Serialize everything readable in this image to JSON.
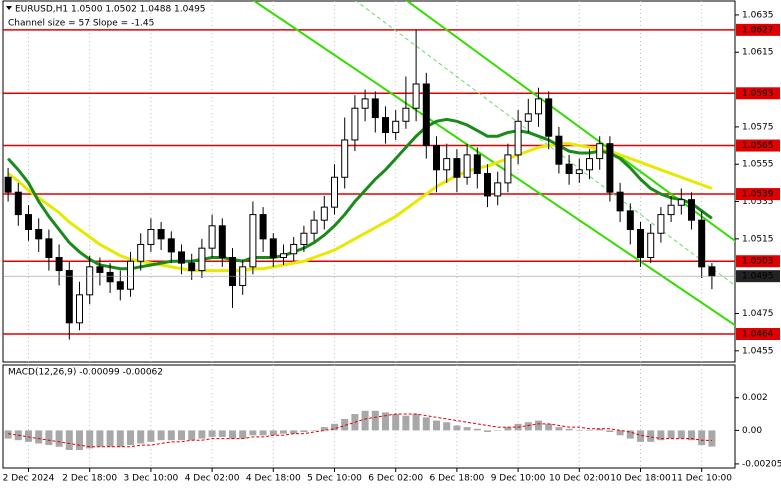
{
  "chart_data": {
    "type": "candlestick",
    "title": "EURUSD,H1  1.0500 1.0502 1.0488 1.0495",
    "subtitle": "Channel size = 57 Slope = -1.45",
    "categories": [
      null,
      null,
      "2 Dec 2024",
      null,
      null,
      null,
      null,
      null,
      "2 Dec 18:00",
      null,
      null,
      null,
      null,
      null,
      "3 Dec 10:00",
      null,
      null,
      null,
      null,
      null,
      "4 Dec 02:00",
      null,
      null,
      null,
      null,
      null,
      "4 Dec 18:00",
      null,
      null,
      null,
      null,
      null,
      "5 Dec 10:00",
      null,
      null,
      null,
      null,
      null,
      "6 Dec 02:00",
      null,
      null,
      null,
      null,
      null,
      "6 Dec 18:00",
      null,
      null,
      null,
      null,
      null,
      "9 Dec 10:00",
      null,
      null,
      null,
      null,
      null,
      "10 Dec 02:00",
      null,
      null,
      null,
      null,
      null,
      "10 Dec 18:00",
      null,
      null,
      null,
      null,
      null,
      "11 Dec 10:00",
      null
    ],
    "open": [
      1.0548,
      1.054,
      1.0528,
      1.052,
      1.0515,
      1.0505,
      1.0498,
      1.047,
      1.0485,
      1.05,
      1.0497,
      1.0492,
      1.0488,
      1.0503,
      1.0512,
      1.052,
      1.0515,
      1.0508,
      1.0502,
      1.0498,
      1.051,
      1.0522,
      1.0505,
      1.049,
      1.05,
      1.0528,
      1.0515,
      1.0505,
      1.0507,
      1.0512,
      1.0518,
      1.0525,
      1.0532,
      1.0548,
      1.0568,
      1.0585,
      1.059,
      1.058,
      1.0572,
      1.0578,
      1.0585,
      1.0598,
      1.0565,
      1.0552,
      1.0558,
      1.0548,
      1.056,
      1.055,
      1.0538,
      1.0545,
      1.056,
      1.0578,
      1.0582,
      1.059,
      1.057,
      1.0555,
      1.055,
      1.0552,
      1.0558,
      1.0566,
      1.054,
      1.053,
      1.052,
      1.0505,
      1.0518,
      1.0528,
      1.0533,
      1.0536,
      1.0525,
      1.05
    ],
    "high": [
      1.0553,
      1.0545,
      1.0533,
      1.0526,
      1.052,
      1.0512,
      1.0503,
      1.0492,
      1.0506,
      1.0505,
      1.0502,
      1.0498,
      1.0508,
      1.0518,
      1.0526,
      1.0524,
      1.0519,
      1.0512,
      1.0507,
      1.0515,
      1.0528,
      1.0526,
      1.051,
      1.0504,
      1.0535,
      1.0532,
      1.0518,
      1.0512,
      1.0516,
      1.0522,
      1.053,
      1.0538,
      1.0555,
      1.058,
      1.0592,
      1.0595,
      1.0594,
      1.0586,
      1.0584,
      1.0602,
      1.0627,
      1.0604,
      1.057,
      1.0566,
      1.0563,
      1.0566,
      1.0564,
      1.0555,
      1.0551,
      1.0566,
      1.0584,
      1.059,
      1.0596,
      1.0594,
      1.0575,
      1.056,
      1.0558,
      1.0563,
      1.057,
      1.057,
      1.0545,
      1.0534,
      1.0524,
      1.0523,
      1.0532,
      1.0538,
      1.0542,
      1.054,
      1.053,
      1.0502
    ],
    "low": [
      1.0535,
      1.0522,
      1.0514,
      1.0508,
      1.0498,
      1.049,
      1.0461,
      1.0466,
      1.048,
      1.049,
      1.0486,
      1.0482,
      1.0484,
      1.0498,
      1.0508,
      1.0509,
      1.0502,
      1.0496,
      1.0493,
      1.0494,
      1.0505,
      1.05,
      1.0478,
      1.0485,
      1.0496,
      1.0508,
      1.05,
      1.0501,
      1.0503,
      1.0508,
      1.0514,
      1.052,
      1.0528,
      1.0542,
      1.0562,
      1.0578,
      1.0572,
      1.0566,
      1.0568,
      1.0574,
      1.0578,
      1.0558,
      1.054,
      1.0545,
      1.054,
      1.0544,
      1.0542,
      1.0532,
      1.0533,
      1.054,
      1.0555,
      1.0572,
      1.0575,
      1.0563,
      1.055,
      1.0544,
      1.0545,
      1.0547,
      1.0552,
      1.0535,
      1.0524,
      1.0512,
      1.05,
      1.0502,
      1.0513,
      1.0524,
      1.0528,
      1.052,
      1.0494,
      1.0488
    ],
    "close": [
      1.054,
      1.0528,
      1.052,
      1.0515,
      1.0505,
      1.0498,
      1.047,
      1.0485,
      1.05,
      1.0497,
      1.0492,
      1.0488,
      1.0503,
      1.0512,
      1.052,
      1.0515,
      1.0508,
      1.0502,
      1.0498,
      1.051,
      1.0522,
      1.0505,
      1.049,
      1.05,
      1.0528,
      1.0515,
      1.0505,
      1.0507,
      1.0512,
      1.0518,
      1.0525,
      1.0532,
      1.0548,
      1.0568,
      1.0585,
      1.059,
      1.058,
      1.0572,
      1.0578,
      1.0585,
      1.0598,
      1.0565,
      1.0552,
      1.0558,
      1.0548,
      1.056,
      1.055,
      1.0538,
      1.0545,
      1.056,
      1.0578,
      1.0582,
      1.059,
      1.057,
      1.0555,
      1.055,
      1.0552,
      1.0558,
      1.0566,
      1.054,
      1.053,
      1.052,
      1.0505,
      1.0518,
      1.0528,
      1.0533,
      1.0536,
      1.0525,
      1.05,
      1.0495
    ],
    "moving_averages": [
      {
        "color": "#e8e800",
        "values": [
          1.055,
          1.0546,
          1.0541,
          1.0537,
          1.0533,
          1.0529,
          1.0524,
          1.052,
          1.0516,
          1.0512,
          1.0509,
          1.0506,
          1.0504,
          1.0503,
          1.0502,
          1.0501,
          1.05,
          1.0499,
          1.0498,
          1.0498,
          1.0498,
          1.0498,
          1.0498,
          1.0498,
          1.0499,
          1.0499,
          1.05,
          1.0501,
          1.0502,
          1.0503,
          1.0505,
          1.0507,
          1.0509,
          1.0512,
          1.0515,
          1.0518,
          1.0521,
          1.0524,
          1.0527,
          1.0531,
          1.0535,
          1.0539,
          1.0543,
          1.0546,
          1.0549,
          1.0551,
          1.0553,
          1.0554,
          1.0556,
          1.0558,
          1.056,
          1.0562,
          1.0564,
          1.0565,
          1.0566,
          1.0566,
          1.0565,
          1.0564,
          1.0563,
          1.0562,
          1.056,
          1.0558,
          1.0556,
          1.0554,
          1.0552,
          1.055,
          1.0548,
          1.0546,
          1.0544,
          1.0542
        ]
      },
      {
        "color": "#1a8a1a",
        "values": [
          1.0558,
          1.0552,
          1.0545,
          1.0535,
          1.0527,
          1.052,
          1.0513,
          1.0508,
          1.0504,
          1.0501,
          1.05,
          1.0499,
          1.0499,
          1.05,
          1.0501,
          1.0502,
          1.0503,
          1.0503,
          1.0503,
          1.0504,
          1.0505,
          1.0505,
          1.0504,
          1.0503,
          1.0505,
          1.0505,
          1.0505,
          1.0506,
          1.0508,
          1.051,
          1.0513,
          1.0517,
          1.0522,
          1.0528,
          1.0535,
          1.0541,
          1.0547,
          1.0552,
          1.0558,
          1.0564,
          1.057,
          1.0575,
          1.0578,
          1.0579,
          1.0578,
          1.0576,
          1.0573,
          1.057,
          1.057,
          1.0572,
          1.0573,
          1.0572,
          1.057,
          1.0568,
          1.0565,
          1.0562,
          1.0561,
          1.0561,
          1.0562,
          1.0561,
          1.0558,
          1.0553,
          1.0547,
          1.0542,
          1.0539,
          1.0537,
          1.0536,
          1.0534,
          1.053,
          1.0526
        ]
      }
    ],
    "channel_lines": [
      {
        "color": "#33dd00",
        "dashed": false,
        "x": [
          24,
          72
        ],
        "values": [
          1.0643,
          1.0466
        ]
      },
      {
        "color": "#33dd00",
        "dashed": false,
        "x": [
          39,
          72
        ],
        "values": [
          1.0643,
          1.0511
        ]
      },
      {
        "color": "#66dd66",
        "dashed": true,
        "x": [
          34,
          72
        ],
        "values": [
          1.0643,
          1.0487
        ]
      }
    ],
    "levels": {
      "color": "#e00000",
      "values": [
        1.0627,
        1.0593,
        1.0565,
        1.0539,
        1.0503,
        1.0464
      ]
    },
    "current_price": 1.0495,
    "ylim": [
      1.0449,
      1.0643
    ],
    "yticks": [
      1.0635,
      1.0615,
      1.0575,
      1.0555,
      1.0535,
      1.0515,
      1.0475,
      1.0455
    ],
    "grid": true,
    "macd": {
      "title": "MACD(12,26,9) -0.00099 -0.00062",
      "histogram": [
        -0.0005,
        -0.0006,
        -0.0007,
        -0.0008,
        -0.0009,
        -0.001,
        -0.0012,
        -0.0012,
        -0.0011,
        -0.001,
        -0.001,
        -0.001,
        -0.0009,
        -0.0008,
        -0.0007,
        -0.0006,
        -0.0006,
        -0.0006,
        -0.0006,
        -0.0005,
        -0.0004,
        -0.0004,
        -0.0005,
        -0.0005,
        -0.0003,
        -0.0003,
        -0.0003,
        -0.0002,
        -0.0002,
        -0.0001,
        0.0,
        0.0002,
        0.0004,
        0.0007,
        0.001,
        0.0012,
        0.0012,
        0.0011,
        0.001,
        0.0009,
        0.001,
        0.0008,
        0.0006,
        0.0005,
        0.0003,
        0.0002,
        0.0001,
        -0.0001,
        0.0,
        0.0002,
        0.0004,
        0.0005,
        0.0006,
        0.0004,
        0.0002,
        0.0001,
        0.0,
        0.0,
        0.0001,
        -0.0001,
        -0.0003,
        -0.0005,
        -0.0007,
        -0.0007,
        -0.0006,
        -0.0005,
        -0.0005,
        -0.0006,
        -0.0009,
        -0.00099
      ],
      "signal": [
        -0.0002,
        -0.0003,
        -0.0004,
        -0.0005,
        -0.0006,
        -0.0007,
        -0.0008,
        -0.0009,
        -0.001,
        -0.001,
        -0.001,
        -0.001,
        -0.001,
        -0.0009,
        -0.0009,
        -0.0008,
        -0.0007,
        -0.0007,
        -0.0006,
        -0.0006,
        -0.0005,
        -0.0005,
        -0.0005,
        -0.0005,
        -0.0004,
        -0.0004,
        -0.0003,
        -0.0003,
        -0.0002,
        -0.0002,
        -0.0001,
        0.0,
        0.0001,
        0.0003,
        0.0005,
        0.0007,
        0.0008,
        0.0009,
        0.001,
        0.001,
        0.001,
        0.0009,
        0.0008,
        0.0007,
        0.0006,
        0.0005,
        0.0004,
        0.0003,
        0.0002,
        0.0002,
        0.0002,
        0.0003,
        0.0004,
        0.0004,
        0.0003,
        0.0002,
        0.0002,
        0.0001,
        0.0001,
        0.0001,
        0.0,
        -0.0001,
        -0.0003,
        -0.0004,
        -0.0005,
        -0.0005,
        -0.0005,
        -0.0005,
        -0.0006,
        -0.00062
      ],
      "histogram_color": "#a8a8a8",
      "signal_color": "#e00000",
      "ylim": [
        -0.0023,
        0.004
      ],
      "yticks": [
        0.002,
        {
          "value": 0,
          "label": "0.00"
        },
        -0.00205
      ]
    }
  }
}
